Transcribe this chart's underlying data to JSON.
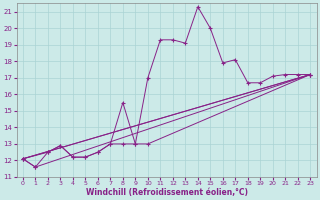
{
  "xlabel": "Windchill (Refroidissement éolien,°C)",
  "background_color": "#cceae8",
  "grid_color": "#aad4d4",
  "line_color": "#882288",
  "xlim": [
    -0.5,
    23.5
  ],
  "ylim": [
    11,
    21.5
  ],
  "xticks": [
    0,
    1,
    2,
    3,
    4,
    5,
    6,
    7,
    8,
    9,
    10,
    11,
    12,
    13,
    14,
    15,
    16,
    17,
    18,
    19,
    20,
    21,
    22,
    23
  ],
  "yticks": [
    11,
    12,
    13,
    14,
    15,
    16,
    17,
    18,
    19,
    20,
    21
  ],
  "series1_x": [
    0,
    1,
    2,
    3,
    4,
    5,
    6,
    7,
    8,
    9,
    10,
    11,
    12,
    13,
    14,
    15,
    16,
    17,
    18,
    19,
    20,
    21,
    22,
    23
  ],
  "series1_y": [
    12.1,
    11.6,
    12.5,
    12.9,
    12.2,
    12.2,
    12.5,
    13.0,
    13.0,
    13.0,
    17.0,
    19.3,
    19.3,
    19.1,
    21.3,
    20.0,
    17.9,
    18.1,
    16.7,
    16.7,
    17.1,
    17.2,
    17.2,
    17.2
  ],
  "series2_x": [
    0,
    2,
    3,
    4,
    5,
    6,
    7,
    8,
    9,
    10,
    23
  ],
  "series2_y": [
    12.1,
    12.5,
    12.9,
    12.2,
    12.2,
    12.5,
    13.0,
    15.5,
    13.0,
    13.0,
    17.2
  ],
  "series3_x": [
    0,
    23
  ],
  "series3_y": [
    12.1,
    17.2
  ],
  "series4_x": [
    0,
    23
  ],
  "series4_y": [
    12.1,
    17.2
  ],
  "series5_x": [
    0,
    1,
    23
  ],
  "series5_y": [
    12.1,
    11.6,
    17.2
  ]
}
